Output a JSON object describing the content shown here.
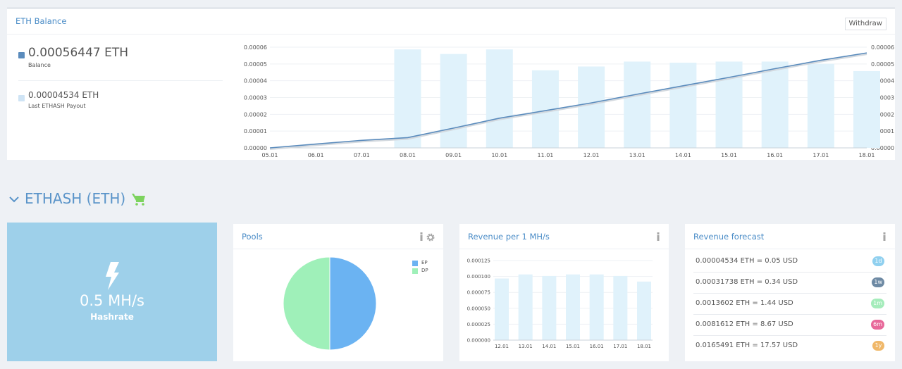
{
  "balance_panel": {
    "title": "ETH Balance",
    "withdraw_label": "Withdraw",
    "balance_value": "0.00056447 ETH",
    "balance_label": "Balance",
    "payout_value": "0.00004534 ETH",
    "payout_label": "Last ETHASH Payout",
    "colors": {
      "balance": "#5b8cbd",
      "payout": "#cfe4f5"
    }
  },
  "section": {
    "title": "ETHASH (ETH)",
    "chevron_icon": "chevron-down-icon",
    "cart_icon": "shopping-cart-icon"
  },
  "hashrate": {
    "value": "0.5 MH/s",
    "label": "Hashrate",
    "icon": "lightning-bolt-icon"
  },
  "pools_panel": {
    "title": "Pools",
    "legend": [
      {
        "label": "EP",
        "color": "#6bb3f2"
      },
      {
        "label": "DP",
        "color": "#9ff0b9"
      }
    ]
  },
  "revenue_panel": {
    "title": "Revenue per 1 MH/s"
  },
  "forecast_panel": {
    "title": "Revenue forecast",
    "rows": [
      {
        "text": "0.00004534 ETH = 0.05 USD",
        "badge": "1d",
        "color": "#90d0ef"
      },
      {
        "text": "0.00031738 ETH = 0.34 USD",
        "badge": "1w",
        "color": "#6e8aa4"
      },
      {
        "text": "0.0013602 ETH = 1.44 USD",
        "badge": "1m",
        "color": "#a5ecbb"
      },
      {
        "text": "0.0081612 ETH = 8.67 USD",
        "badge": "6m",
        "color": "#e8699a"
      },
      {
        "text": "0.0165491 ETH = 17.57 USD",
        "badge": "1y",
        "color": "#f0b86a"
      }
    ]
  },
  "chart_data": [
    {
      "type": "bar",
      "categories": [
        "05.01",
        "06.01",
        "07.01",
        "08.01",
        "09.01",
        "10.01",
        "11.01",
        "12.01",
        "13.01",
        "14.01",
        "15.01",
        "16.01",
        "17.01",
        "18.01"
      ],
      "series": [
        {
          "name": "",
          "type": "bar",
          "values": [
            0,
            0,
            0,
            5.868e-05,
            5.595e-05,
            5.868e-05,
            4.621e-05,
            4.848e-05,
            5.143e-05,
            5.075e-05,
            5.143e-05,
            5.143e-05,
            5.006e-05,
            4.576e-05
          ]
        },
        {
          "name": "",
          "type": "line",
          "values": [
            0,
            2.3e-06,
            4.5e-06,
            6.1e-06,
            1.18e-05,
            1.77e-05,
            2.22e-05,
            2.68e-05,
            3.2e-05,
            3.7e-05,
            4.2e-05,
            4.72e-05,
            5.22e-05,
            5.66e-05
          ]
        }
      ],
      "ylim": [
        0,
        6e-05
      ],
      "yticks": [
        "0.00000",
        "0.00001",
        "0.00002",
        "0.00003",
        "0.00004",
        "0.00005",
        "0.00006"
      ],
      "colors": {
        "bar": "#e0f2fb",
        "line": "#5b8cbd"
      }
    },
    {
      "type": "pie",
      "labels": [
        "EP",
        "DP"
      ],
      "values": [
        50,
        50
      ],
      "colors": [
        "#6bb3f2",
        "#9ff0b9"
      ]
    },
    {
      "type": "bar",
      "categories": [
        "12.01",
        "13.01",
        "14.01",
        "15.01",
        "16.01",
        "17.01",
        "18.01"
      ],
      "values": [
        9.68e-05,
        0.0001032,
        0.0001008,
        0.0001032,
        0.0001032,
        0.0001008,
        9.2e-05
      ],
      "ylim": [
        0,
        0.000125
      ],
      "yticks": [
        "0.000000",
        "0.000025",
        "0.000050",
        "0.000075",
        "0.000100",
        "0.000125"
      ],
      "colors": {
        "bar": "#e0f2fb"
      }
    }
  ]
}
